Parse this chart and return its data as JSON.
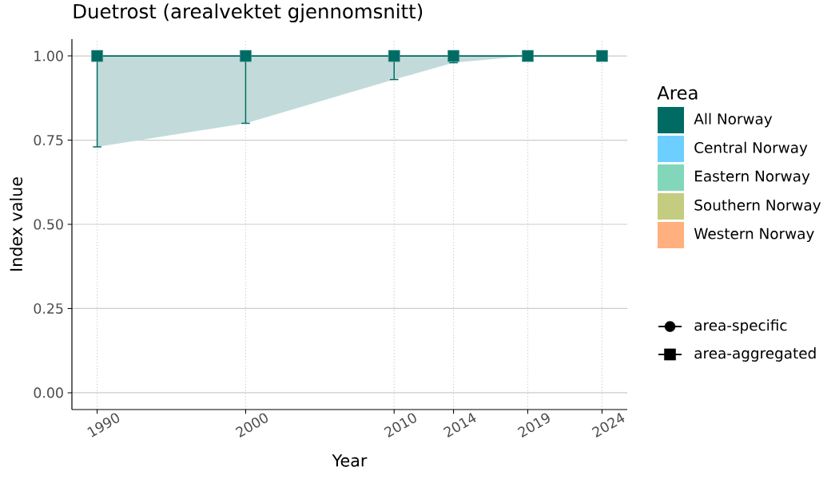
{
  "chart_data": {
    "type": "line",
    "title": "Duetrost (arealvektet gjennomsnitt)",
    "xlabel": "Year",
    "ylabel": "Index value",
    "legend_title": "Area",
    "x": [
      1990,
      2000,
      2010,
      2014,
      2019,
      2024
    ],
    "xlim": [
      1988.3,
      2025.7
    ],
    "xticks": [
      1990,
      2000,
      2010,
      2014,
      2019,
      2024
    ],
    "ylim": [
      -0.05,
      1.05
    ],
    "yticks": [
      {
        "value": 0,
        "label": "0.00"
      },
      0.25,
      {
        "value": 0.5,
        "label": "0.50"
      },
      0.75,
      {
        "value": 1,
        "label": "1.00"
      }
    ],
    "grid": true,
    "legend": "right",
    "marker": "square",
    "series": [
      {
        "name": "All Norway",
        "color": "#006b63",
        "values": [
          1,
          1,
          1,
          1,
          1,
          1
        ],
        "errors": [
          [
            0.73,
            1
          ],
          [
            0.8,
            1
          ],
          [
            0.93,
            1
          ],
          [
            0.98,
            1
          ],
          null,
          null
        ],
        "lower": [
          0.73,
          0.8,
          0.93,
          0.98,
          1,
          1
        ],
        "upper": [
          1,
          1,
          1,
          1,
          1,
          1
        ]
      },
      {
        "name": "Central Norway",
        "color": "#6dcfff",
        "values": [
          null,
          null,
          null,
          null,
          null,
          null
        ]
      },
      {
        "name": "Eastern Norway",
        "color": "#82d6b9",
        "values": [
          null,
          null,
          null,
          null,
          null,
          null
        ]
      },
      {
        "name": "Southern Norway",
        "color": "#c4cc80",
        "values": [
          null,
          null,
          null,
          null,
          null,
          null
        ]
      },
      {
        "name": "Western Norway",
        "color": "#ffb07e",
        "values": [
          null,
          null,
          null,
          null,
          null,
          null
        ]
      },
      {
        "name": "area-specific",
        "color": "#000000",
        "marker": "circle",
        "values": [
          null,
          null,
          null,
          null,
          null,
          null
        ]
      },
      {
        "name": "area-aggregated",
        "color": "#000000",
        "marker": "square",
        "values": [
          null,
          null,
          null,
          null,
          null,
          null
        ]
      }
    ]
  }
}
